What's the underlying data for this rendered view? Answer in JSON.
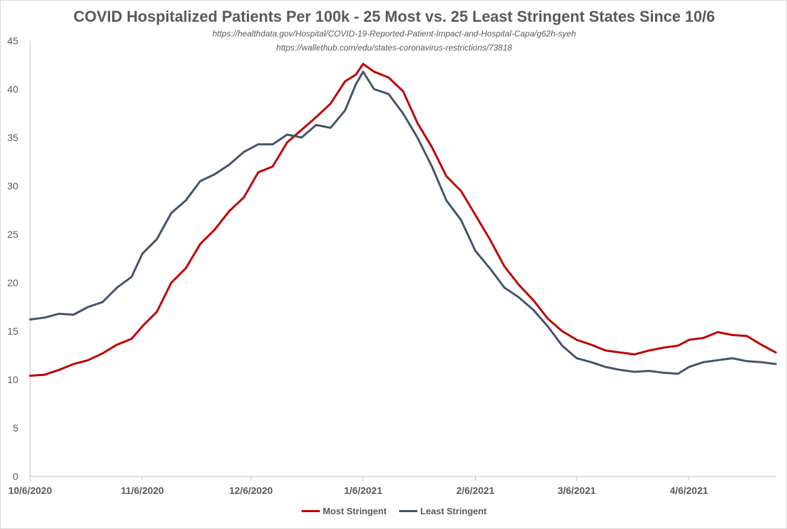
{
  "chart_data": {
    "type": "line",
    "title": "COVID Hospitalized Patients Per 100k - 25 Most vs. 25 Least Stringent States Since 10/6",
    "sources": [
      "https://healthdata.gov/Hospital/COVID-19-Reported-Patient-Impact-and-Hospital-Capa/g62h-syeh",
      "https://wallethub.com/edu/states-coronavirus-restrictions/73818"
    ],
    "x_ticks": [
      "10/6/2020",
      "11/6/2020",
      "12/6/2020",
      "1/6/2021",
      "2/6/2021",
      "3/6/2021",
      "4/6/2021"
    ],
    "y_ticks": [
      "0",
      "5",
      "10",
      "15",
      "20",
      "25",
      "30",
      "35",
      "40",
      "45"
    ],
    "ylim": [
      0,
      45
    ],
    "grid": false,
    "legend_position": "bottom",
    "x_start": "2020-10-06",
    "x_end": "2021-04-30",
    "series": [
      {
        "name": "Most Stringent",
        "color": "#c00000",
        "points": [
          [
            "2020-10-06",
            10.4
          ],
          [
            "2020-10-10",
            10.5
          ],
          [
            "2020-10-14",
            11.0
          ],
          [
            "2020-10-18",
            11.6
          ],
          [
            "2020-10-22",
            12.0
          ],
          [
            "2020-10-26",
            12.7
          ],
          [
            "2020-10-30",
            13.6
          ],
          [
            "2020-11-03",
            14.2
          ],
          [
            "2020-11-06",
            15.5
          ],
          [
            "2020-11-10",
            17.0
          ],
          [
            "2020-11-14",
            20.0
          ],
          [
            "2020-11-18",
            21.5
          ],
          [
            "2020-11-22",
            24.0
          ],
          [
            "2020-11-26",
            25.5
          ],
          [
            "2020-11-30",
            27.4
          ],
          [
            "2020-12-04",
            28.8
          ],
          [
            "2020-12-08",
            31.4
          ],
          [
            "2020-12-12",
            32.0
          ],
          [
            "2020-12-16",
            34.5
          ],
          [
            "2020-12-20",
            35.8
          ],
          [
            "2020-12-24",
            37.1
          ],
          [
            "2020-12-28",
            38.5
          ],
          [
            "2021-01-01",
            40.8
          ],
          [
            "2021-01-04",
            41.5
          ],
          [
            "2021-01-06",
            42.6
          ],
          [
            "2021-01-09",
            41.8
          ],
          [
            "2021-01-13",
            41.2
          ],
          [
            "2021-01-17",
            39.8
          ],
          [
            "2021-01-21",
            36.5
          ],
          [
            "2021-01-25",
            34.0
          ],
          [
            "2021-01-29",
            31.0
          ],
          [
            "2021-02-02",
            29.5
          ],
          [
            "2021-02-06",
            27.0
          ],
          [
            "2021-02-10",
            24.5
          ],
          [
            "2021-02-14",
            21.7
          ],
          [
            "2021-02-18",
            19.8
          ],
          [
            "2021-02-22",
            18.2
          ],
          [
            "2021-02-26",
            16.3
          ],
          [
            "2021-03-02",
            15.0
          ],
          [
            "2021-03-06",
            14.1
          ],
          [
            "2021-03-10",
            13.6
          ],
          [
            "2021-03-14",
            13.0
          ],
          [
            "2021-03-18",
            12.8
          ],
          [
            "2021-03-22",
            12.6
          ],
          [
            "2021-03-26",
            13.0
          ],
          [
            "2021-03-30",
            13.3
          ],
          [
            "2021-04-03",
            13.5
          ],
          [
            "2021-04-06",
            14.1
          ],
          [
            "2021-04-10",
            14.3
          ],
          [
            "2021-04-14",
            14.9
          ],
          [
            "2021-04-18",
            14.6
          ],
          [
            "2021-04-22",
            14.5
          ],
          [
            "2021-04-26",
            13.6
          ],
          [
            "2021-04-30",
            12.8
          ]
        ]
      },
      {
        "name": "Least Stringent",
        "color": "#44546a",
        "points": [
          [
            "2020-10-06",
            16.2
          ],
          [
            "2020-10-10",
            16.4
          ],
          [
            "2020-10-14",
            16.8
          ],
          [
            "2020-10-18",
            16.7
          ],
          [
            "2020-10-22",
            17.5
          ],
          [
            "2020-10-26",
            18.0
          ],
          [
            "2020-10-30",
            19.5
          ],
          [
            "2020-11-03",
            20.6
          ],
          [
            "2020-11-06",
            23.0
          ],
          [
            "2020-11-10",
            24.5
          ],
          [
            "2020-11-14",
            27.2
          ],
          [
            "2020-11-18",
            28.5
          ],
          [
            "2020-11-22",
            30.5
          ],
          [
            "2020-11-26",
            31.2
          ],
          [
            "2020-11-30",
            32.2
          ],
          [
            "2020-12-04",
            33.5
          ],
          [
            "2020-12-08",
            34.3
          ],
          [
            "2020-12-12",
            34.3
          ],
          [
            "2020-12-16",
            35.3
          ],
          [
            "2020-12-20",
            35.0
          ],
          [
            "2020-12-24",
            36.3
          ],
          [
            "2020-12-28",
            36.0
          ],
          [
            "2021-01-01",
            37.8
          ],
          [
            "2021-01-04",
            40.5
          ],
          [
            "2021-01-06",
            41.8
          ],
          [
            "2021-01-09",
            40.0
          ],
          [
            "2021-01-13",
            39.5
          ],
          [
            "2021-01-17",
            37.5
          ],
          [
            "2021-01-21",
            35.0
          ],
          [
            "2021-01-25",
            32.0
          ],
          [
            "2021-01-29",
            28.5
          ],
          [
            "2021-02-02",
            26.5
          ],
          [
            "2021-02-06",
            23.3
          ],
          [
            "2021-02-10",
            21.5
          ],
          [
            "2021-02-14",
            19.5
          ],
          [
            "2021-02-18",
            18.5
          ],
          [
            "2021-02-22",
            17.2
          ],
          [
            "2021-02-26",
            15.5
          ],
          [
            "2021-03-02",
            13.5
          ],
          [
            "2021-03-06",
            12.2
          ],
          [
            "2021-03-10",
            11.8
          ],
          [
            "2021-03-14",
            11.3
          ],
          [
            "2021-03-18",
            11.0
          ],
          [
            "2021-03-22",
            10.8
          ],
          [
            "2021-03-26",
            10.9
          ],
          [
            "2021-03-30",
            10.7
          ],
          [
            "2021-04-03",
            10.6
          ],
          [
            "2021-04-06",
            11.3
          ],
          [
            "2021-04-10",
            11.8
          ],
          [
            "2021-04-14",
            12.0
          ],
          [
            "2021-04-18",
            12.2
          ],
          [
            "2021-04-22",
            11.9
          ],
          [
            "2021-04-26",
            11.8
          ],
          [
            "2021-04-30",
            11.6
          ]
        ]
      }
    ]
  }
}
